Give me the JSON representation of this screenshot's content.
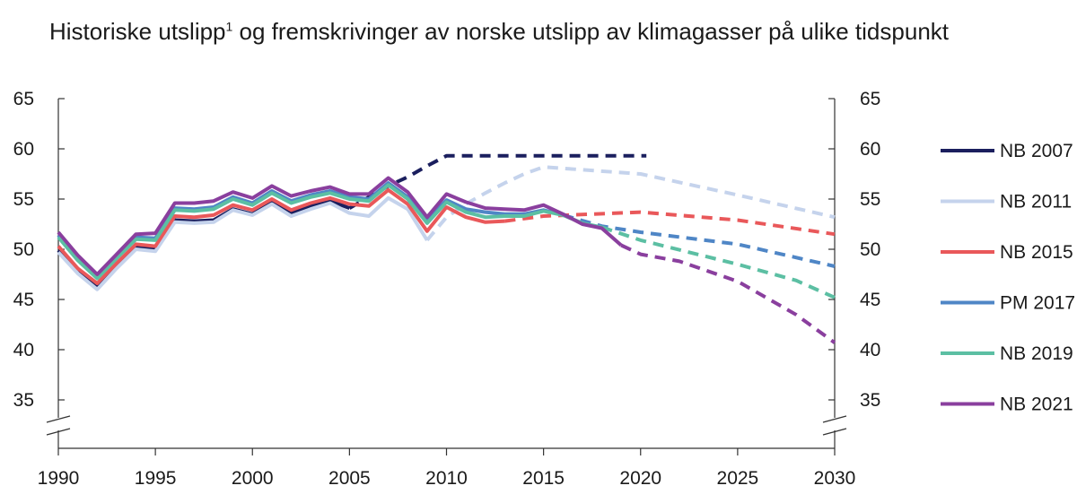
{
  "chart_data": {
    "type": "line",
    "title": "Historiske utslipp",
    "title_sup": "1",
    "title_rest": " og fremskrivinger av norske utslipp av klimagasser på ulike tidspunkt",
    "xlabel": "",
    "ylabel": "",
    "xlim": [
      1990,
      2030
    ],
    "ylim": [
      35,
      65
    ],
    "x_ticks": [
      1990,
      1995,
      2000,
      2005,
      2010,
      2015,
      2020,
      2025,
      2030
    ],
    "y_ticks": [
      35,
      40,
      45,
      50,
      55,
      60,
      65
    ],
    "axis_break": true,
    "legend_position": "right",
    "series": [
      {
        "name": "NB 2007",
        "color": "#1b1f5e",
        "historical": [
          [
            1990,
            49.9
          ],
          [
            1991,
            47.8
          ],
          [
            1992,
            46.2
          ],
          [
            1993,
            48.3
          ],
          [
            1994,
            50.3
          ],
          [
            1995,
            50.0
          ],
          [
            1996,
            52.9
          ],
          [
            1997,
            52.8
          ],
          [
            1998,
            52.9
          ],
          [
            1999,
            54.0
          ],
          [
            2000,
            53.5
          ],
          [
            2001,
            54.8
          ],
          [
            2002,
            53.6
          ],
          [
            2003,
            54.3
          ],
          [
            2004,
            54.8
          ],
          [
            2005,
            54.1
          ]
        ],
        "projection": [
          [
            2005,
            54.1
          ],
          [
            2006,
            55.2
          ],
          [
            2007,
            56.3
          ],
          [
            2008,
            57.2
          ],
          [
            2009,
            58.3
          ],
          [
            2010,
            59.3
          ],
          [
            2015,
            59.3
          ],
          [
            2020,
            59.3
          ],
          [
            2020.3,
            59.3
          ]
        ]
      },
      {
        "name": "NB 2011",
        "color": "#c5d3ec",
        "historical": [
          [
            1990,
            49.7
          ],
          [
            1991,
            47.6
          ],
          [
            1992,
            46.0
          ],
          [
            1993,
            48.1
          ],
          [
            1994,
            50.0
          ],
          [
            1995,
            49.8
          ],
          [
            1996,
            52.7
          ],
          [
            1997,
            52.6
          ],
          [
            1998,
            52.7
          ],
          [
            1999,
            53.9
          ],
          [
            2000,
            53.4
          ],
          [
            2001,
            54.5
          ],
          [
            2002,
            53.3
          ],
          [
            2003,
            54.0
          ],
          [
            2004,
            54.6
          ],
          [
            2005,
            53.6
          ],
          [
            2006,
            53.3
          ],
          [
            2007,
            55.1
          ],
          [
            2008,
            54.0
          ],
          [
            2009,
            50.9
          ]
        ],
        "projection": [
          [
            2009,
            50.9
          ],
          [
            2010,
            53.2
          ],
          [
            2011,
            54.5
          ],
          [
            2012,
            55.6
          ],
          [
            2013,
            56.6
          ],
          [
            2014,
            57.5
          ],
          [
            2015,
            58.2
          ],
          [
            2020,
            57.5
          ],
          [
            2025,
            55.4
          ],
          [
            2030,
            53.2
          ]
        ]
      },
      {
        "name": "NB 2015",
        "color": "#e9585a",
        "historical": [
          [
            1990,
            50.3
          ],
          [
            1991,
            48.1
          ],
          [
            1992,
            46.6
          ],
          [
            1993,
            48.6
          ],
          [
            1994,
            50.5
          ],
          [
            1995,
            50.3
          ],
          [
            1996,
            53.3
          ],
          [
            1997,
            53.2
          ],
          [
            1998,
            53.4
          ],
          [
            1999,
            54.4
          ],
          [
            2000,
            53.9
          ],
          [
            2001,
            55.0
          ],
          [
            2002,
            53.9
          ],
          [
            2003,
            54.6
          ],
          [
            2004,
            55.1
          ],
          [
            2005,
            54.5
          ],
          [
            2006,
            54.3
          ],
          [
            2007,
            55.9
          ],
          [
            2008,
            54.5
          ],
          [
            2009,
            51.8
          ],
          [
            2010,
            54.2
          ],
          [
            2011,
            53.2
          ],
          [
            2012,
            52.7
          ],
          [
            2013,
            52.8
          ]
        ],
        "projection": [
          [
            2013,
            52.8
          ],
          [
            2015,
            53.3
          ],
          [
            2020,
            53.7
          ],
          [
            2025,
            52.9
          ],
          [
            2030,
            51.5
          ]
        ]
      },
      {
        "name": "PM 2017",
        "color": "#4f86c6",
        "historical": [
          [
            1990,
            51.4
          ],
          [
            1991,
            49.1
          ],
          [
            1992,
            47.3
          ],
          [
            1993,
            49.3
          ],
          [
            1994,
            51.2
          ],
          [
            1995,
            51.1
          ],
          [
            1996,
            54.1
          ],
          [
            1997,
            54.0
          ],
          [
            1998,
            54.2
          ],
          [
            1999,
            55.2
          ],
          [
            2000,
            54.6
          ],
          [
            2001,
            55.8
          ],
          [
            2002,
            54.8
          ],
          [
            2003,
            55.4
          ],
          [
            2004,
            55.8
          ],
          [
            2005,
            55.2
          ],
          [
            2006,
            55.0
          ],
          [
            2007,
            56.6
          ],
          [
            2008,
            55.2
          ],
          [
            2009,
            52.9
          ],
          [
            2010,
            54.9
          ],
          [
            2011,
            54.0
          ],
          [
            2012,
            53.7
          ],
          [
            2013,
            53.5
          ],
          [
            2014,
            53.5
          ],
          [
            2015,
            53.9
          ],
          [
            2016,
            53.4
          ]
        ],
        "projection": [
          [
            2016,
            53.4
          ],
          [
            2018,
            52.3
          ],
          [
            2020,
            51.7
          ],
          [
            2025,
            50.5
          ],
          [
            2030,
            48.3
          ]
        ]
      },
      {
        "name": "NB 2019",
        "color": "#5cbfa3",
        "historical": [
          [
            1990,
            51.2
          ],
          [
            1991,
            48.9
          ],
          [
            1992,
            47.1
          ],
          [
            1993,
            49.1
          ],
          [
            1994,
            51.0
          ],
          [
            1995,
            50.9
          ],
          [
            1996,
            53.9
          ],
          [
            1997,
            53.8
          ],
          [
            1998,
            54.0
          ],
          [
            1999,
            55.0
          ],
          [
            2000,
            54.4
          ],
          [
            2001,
            55.6
          ],
          [
            2002,
            54.6
          ],
          [
            2003,
            55.2
          ],
          [
            2004,
            55.6
          ],
          [
            2005,
            55.0
          ],
          [
            2006,
            54.8
          ],
          [
            2007,
            56.4
          ],
          [
            2008,
            55.0
          ],
          [
            2009,
            52.6
          ],
          [
            2010,
            54.7
          ],
          [
            2011,
            53.7
          ],
          [
            2012,
            53.2
          ],
          [
            2013,
            53.3
          ],
          [
            2014,
            53.3
          ],
          [
            2015,
            53.8
          ],
          [
            2016,
            53.4
          ],
          [
            2017,
            52.6
          ],
          [
            2018,
            52.2
          ]
        ],
        "projection": [
          [
            2018,
            52.2
          ],
          [
            2020,
            50.9
          ],
          [
            2025,
            48.5
          ],
          [
            2028,
            46.9
          ],
          [
            2030,
            45.2
          ]
        ]
      },
      {
        "name": "NB 2021",
        "color": "#8a3f9e",
        "historical": [
          [
            1990,
            51.7
          ],
          [
            1991,
            49.4
          ],
          [
            1992,
            47.5
          ],
          [
            1993,
            49.5
          ],
          [
            1994,
            51.5
          ],
          [
            1995,
            51.6
          ],
          [
            1996,
            54.6
          ],
          [
            1997,
            54.6
          ],
          [
            1998,
            54.8
          ],
          [
            1999,
            55.7
          ],
          [
            2000,
            55.1
          ],
          [
            2001,
            56.3
          ],
          [
            2002,
            55.3
          ],
          [
            2003,
            55.8
          ],
          [
            2004,
            56.2
          ],
          [
            2005,
            55.5
          ],
          [
            2006,
            55.5
          ],
          [
            2007,
            57.1
          ],
          [
            2008,
            55.7
          ],
          [
            2009,
            53.2
          ],
          [
            2010,
            55.5
          ],
          [
            2011,
            54.7
          ],
          [
            2012,
            54.1
          ],
          [
            2013,
            54.0
          ],
          [
            2014,
            53.9
          ],
          [
            2015,
            54.4
          ],
          [
            2016,
            53.5
          ],
          [
            2017,
            52.5
          ],
          [
            2018,
            52.1
          ],
          [
            2019,
            50.4
          ]
        ],
        "projection": [
          [
            2019,
            50.4
          ],
          [
            2020,
            49.5
          ],
          [
            2022,
            48.8
          ],
          [
            2025,
            46.8
          ],
          [
            2028,
            43.5
          ],
          [
            2030,
            40.7
          ]
        ]
      }
    ]
  }
}
